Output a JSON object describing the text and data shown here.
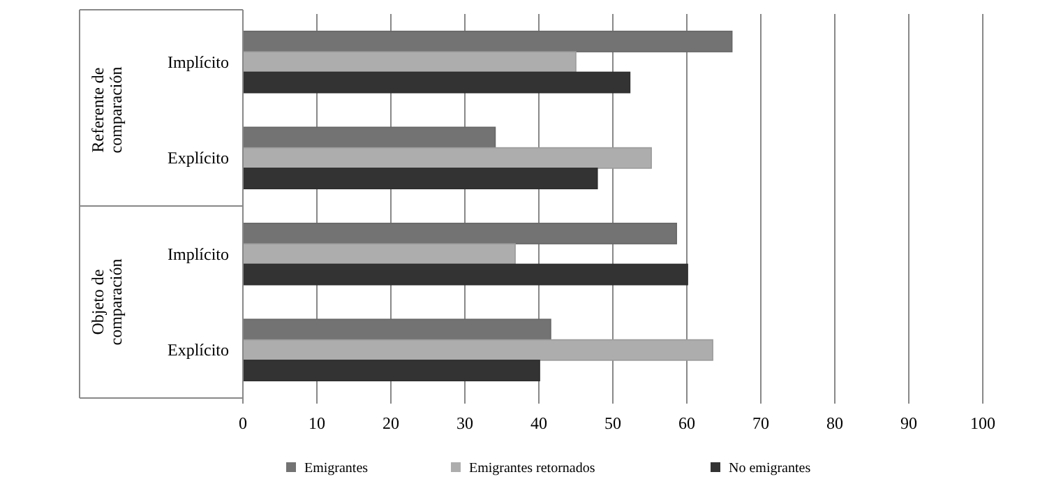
{
  "chart_data": {
    "type": "bar",
    "orientation": "horizontal",
    "categories": [
      "Implícito",
      "Explícito",
      "Implícito",
      "Explícito"
    ],
    "series": [
      {
        "name": "Emigrantes",
        "color": "#737373",
        "values": [
          66.1,
          34.1,
          58.6,
          41.6
        ]
      },
      {
        "name": "Emigrantes retornados",
        "color": "#adadad",
        "values": [
          45.0,
          55.2,
          36.8,
          63.5
        ]
      },
      {
        "name": "No emigrantes",
        "color": "#333333",
        "values": [
          52.3,
          47.9,
          60.1,
          40.1
        ]
      }
    ],
    "xlim": [
      0,
      100
    ],
    "xticks": [
      0,
      10,
      20,
      30,
      40,
      50,
      60,
      70,
      80,
      90,
      100
    ],
    "grid": "x",
    "legend": "bottom",
    "annotations": [
      "Referente de comparación",
      "Objeto de comparación"
    ]
  }
}
